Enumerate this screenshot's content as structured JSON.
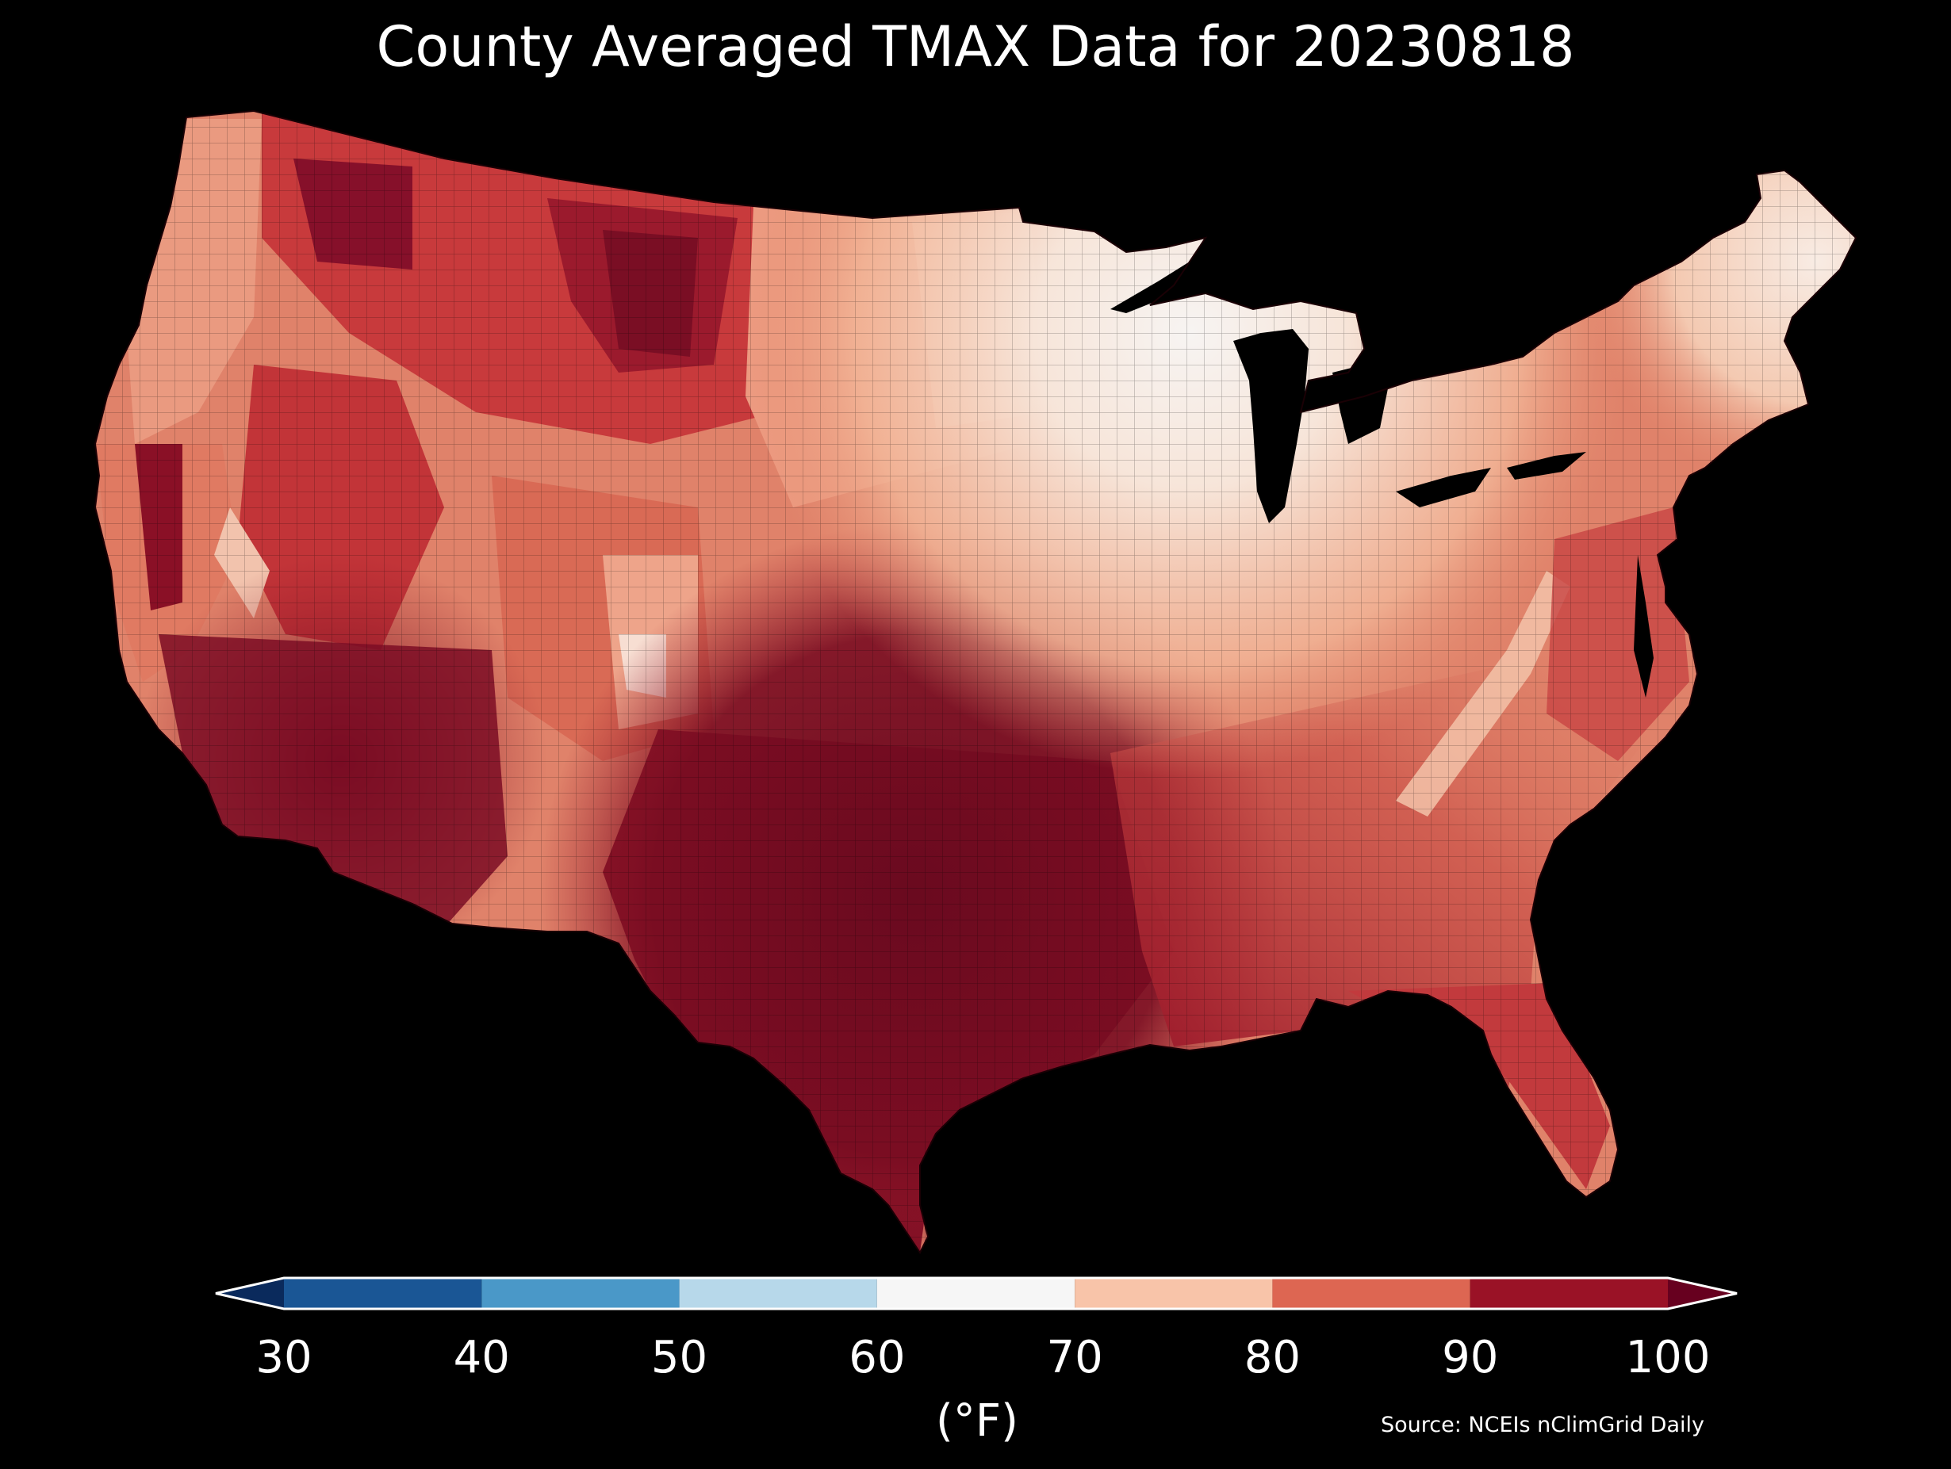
{
  "title": "County Averaged TMAX Data for 20230818",
  "colorbar": {
    "ticks": [
      "30",
      "40",
      "50",
      "60",
      "70",
      "80",
      "90",
      "100"
    ],
    "unit": "(°F)",
    "bins": [
      {
        "from": 30,
        "to": 40,
        "color": "#1a5695"
      },
      {
        "from": 40,
        "to": 50,
        "color": "#4a98c8"
      },
      {
        "from": 50,
        "to": 60,
        "color": "#b7d8ea"
      },
      {
        "from": 60,
        "to": 70,
        "color": "#f6f6f6"
      },
      {
        "from": 70,
        "to": 80,
        "color": "#f8c4a9"
      },
      {
        "from": 80,
        "to": 90,
        "color": "#dd6652"
      },
      {
        "from": 90,
        "to": 100,
        "color": "#9a1226"
      }
    ],
    "under_color": "#0a2a5c",
    "over_color": "#67001f"
  },
  "source": "Source: NCEIs nClimGrid Daily"
}
